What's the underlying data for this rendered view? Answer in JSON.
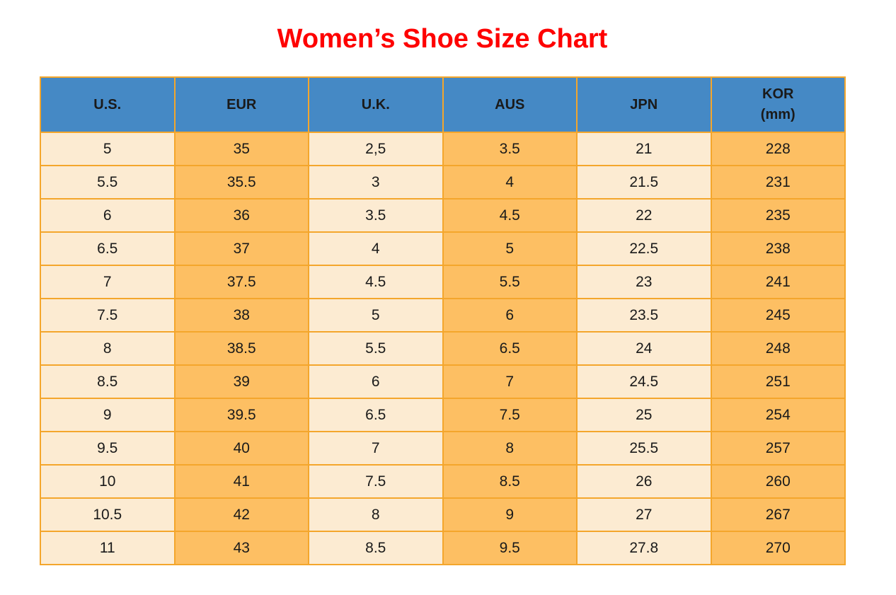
{
  "title": {
    "text": "Women’s Shoe Size Chart"
  },
  "table": {
    "headers": [
      {
        "label": "U.S.",
        "sub": ""
      },
      {
        "label": "EUR",
        "sub": ""
      },
      {
        "label": "U.K.",
        "sub": ""
      },
      {
        "label": "AUS",
        "sub": ""
      },
      {
        "label": "JPN",
        "sub": ""
      },
      {
        "label": "KOR",
        "sub": "(mm)"
      }
    ]
  },
  "chart_data": {
    "type": "table",
    "title": "Women’s Shoe Size Chart",
    "columns": [
      "U.S.",
      "EUR",
      "U.K.",
      "AUS",
      "JPN",
      "KOR (mm)"
    ],
    "rows": [
      [
        "5",
        "35",
        "2,5",
        "3.5",
        "21",
        "228"
      ],
      [
        "5.5",
        "35.5",
        "3",
        "4",
        "21.5",
        "231"
      ],
      [
        "6",
        "36",
        "3.5",
        "4.5",
        "22",
        "235"
      ],
      [
        "6.5",
        "37",
        "4",
        "5",
        "22.5",
        "238"
      ],
      [
        "7",
        "37.5",
        "4.5",
        "5.5",
        "23",
        "241"
      ],
      [
        "7.5",
        "38",
        "5",
        "6",
        "23.5",
        "245"
      ],
      [
        "8",
        "38.5",
        "5.5",
        "6.5",
        "24",
        "248"
      ],
      [
        "8.5",
        "39",
        "6",
        "7",
        "24.5",
        "251"
      ],
      [
        "9",
        "39.5",
        "6.5",
        "7.5",
        "25",
        "254"
      ],
      [
        "9.5",
        "40",
        "7",
        "8",
        "25.5",
        "257"
      ],
      [
        "10",
        "41",
        "7.5",
        "8.5",
        "26",
        "260"
      ],
      [
        "10.5",
        "42",
        "8",
        "9",
        "27",
        "267"
      ],
      [
        "11",
        "43",
        "8.5",
        "9.5",
        "27.8",
        "270"
      ]
    ]
  },
  "colors": {
    "header_bg": "#4589C5",
    "cell_cream": "#FCEBD2",
    "cell_orange": "#FDBF63",
    "grid_border": "#F4A62C",
    "title_red": "#FE0000",
    "text": "#1A1A1A"
  }
}
